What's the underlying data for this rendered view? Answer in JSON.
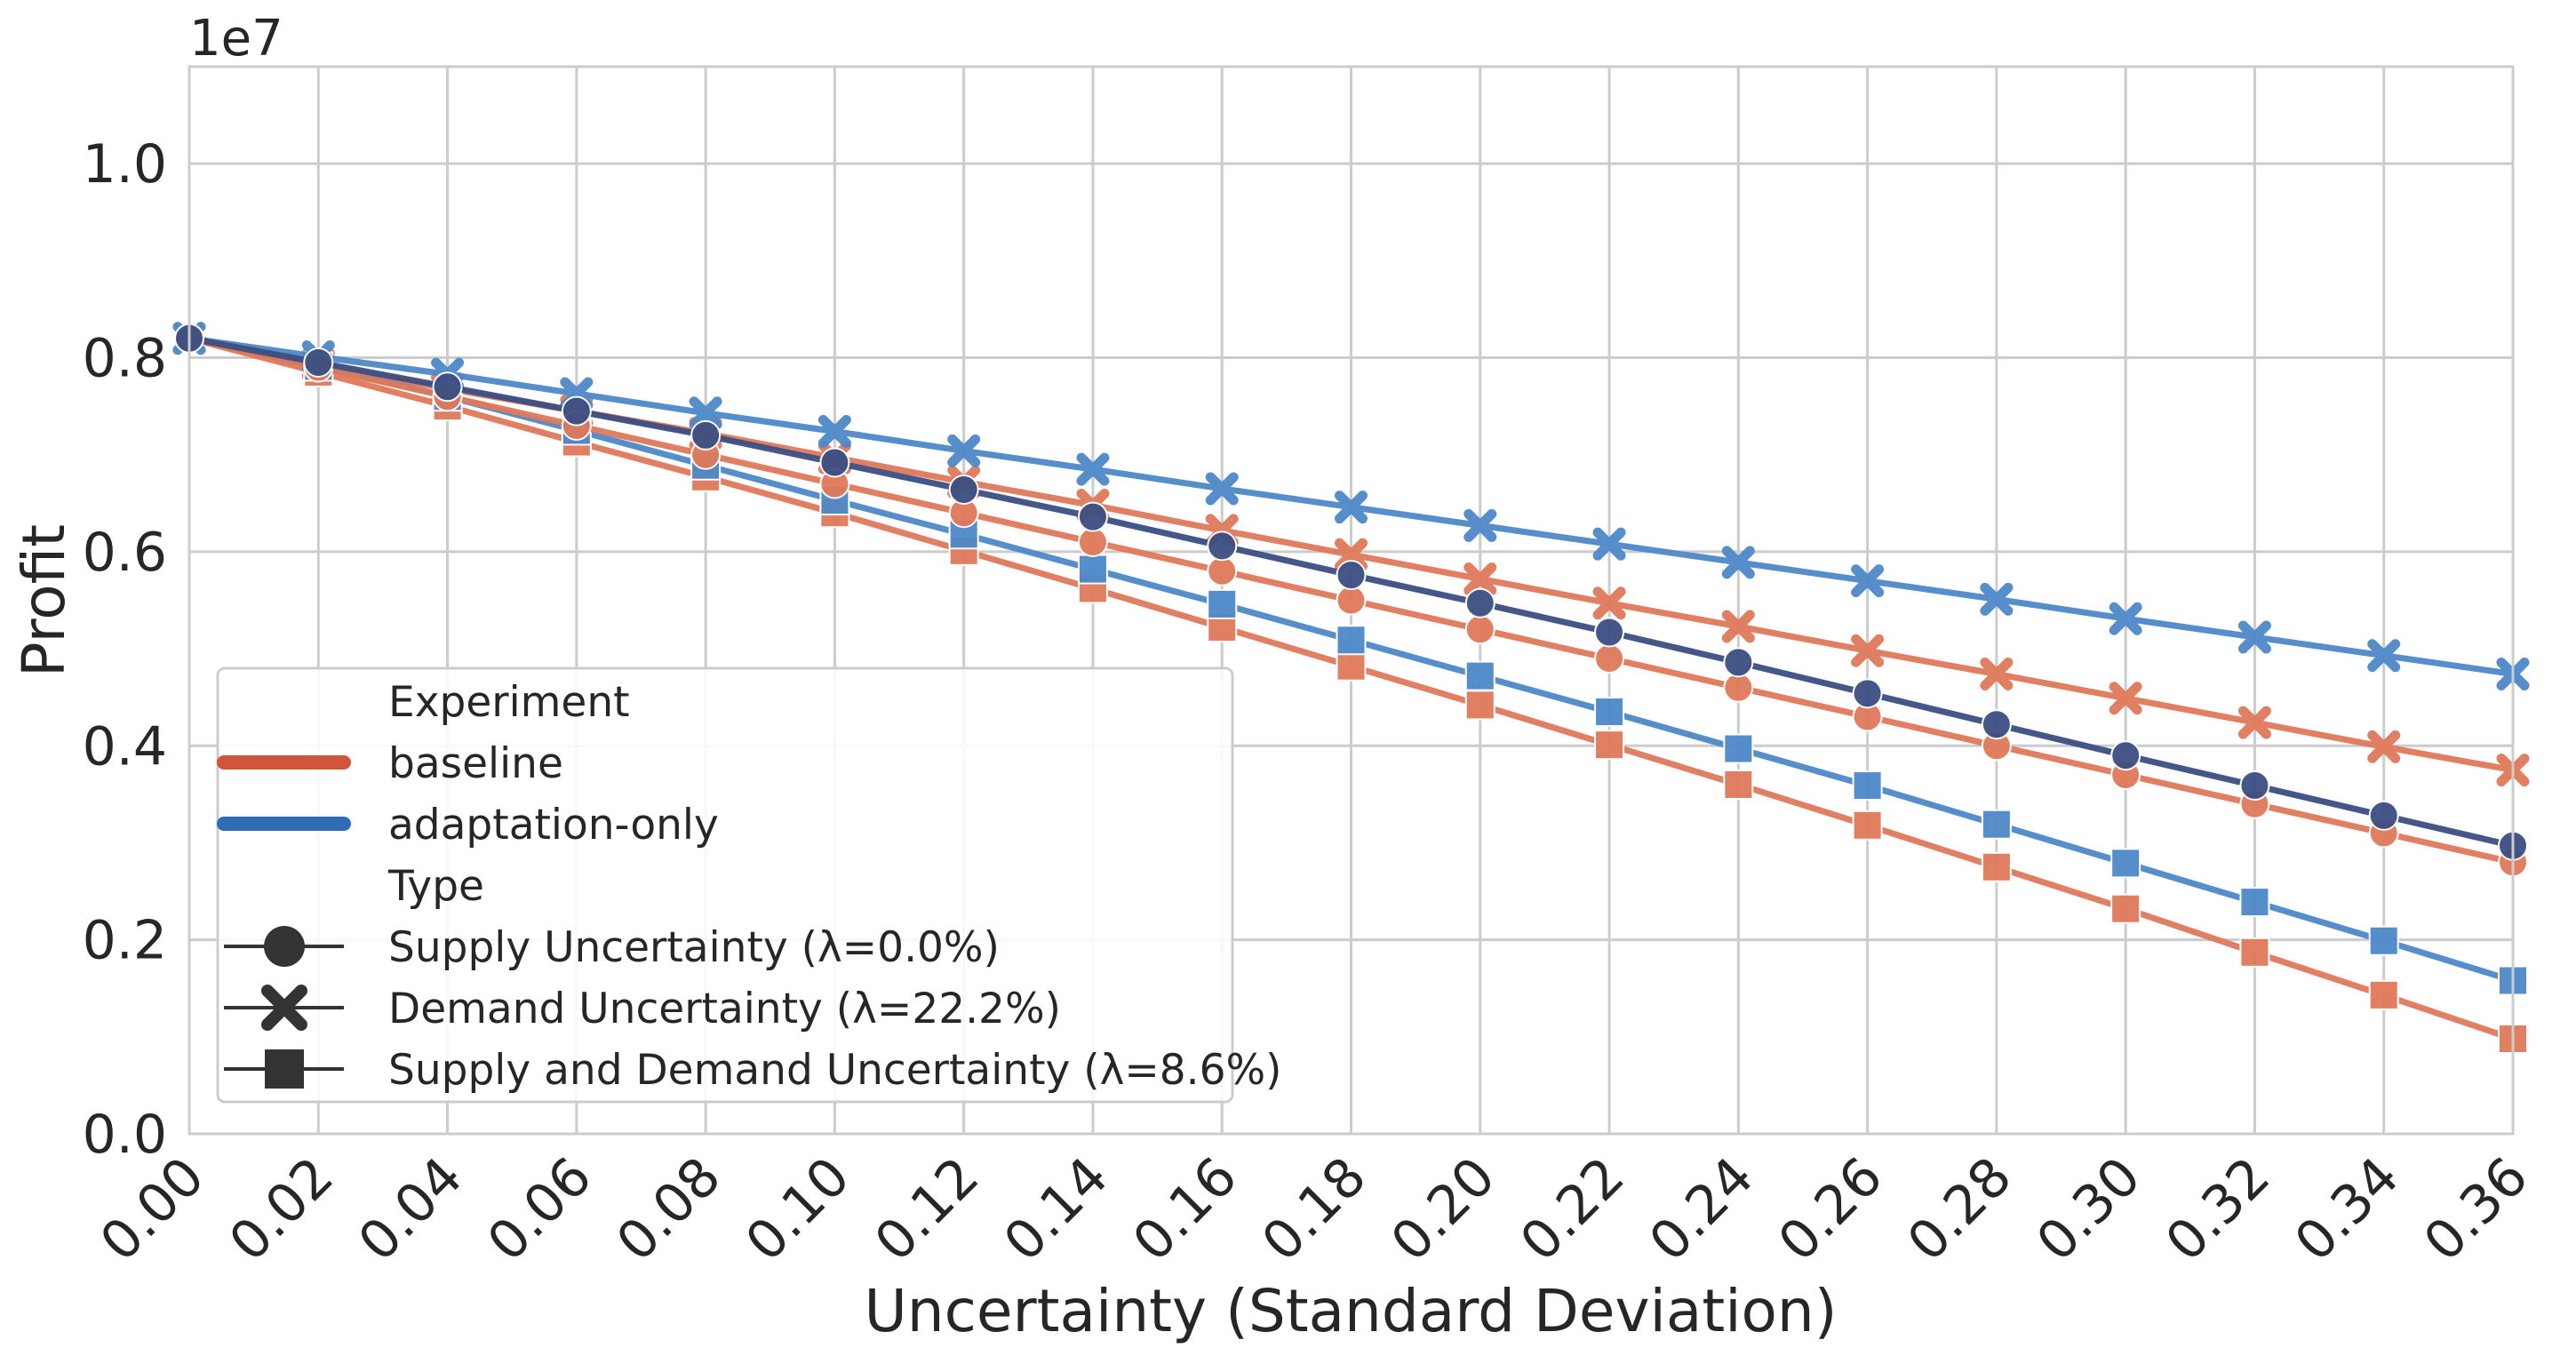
{
  "chart_data": {
    "type": "line",
    "title": "",
    "xlabel": "Uncertainty (Standard Deviation)",
    "ylabel": "Profit",
    "y_scale_label": "1e7",
    "xlim": [
      0.0,
      0.36
    ],
    "ylim": [
      0.0,
      1.1
    ],
    "x_ticks": [
      "0.00",
      "0.02",
      "0.04",
      "0.06",
      "0.08",
      "0.10",
      "0.12",
      "0.14",
      "0.16",
      "0.18",
      "0.20",
      "0.22",
      "0.24",
      "0.26",
      "0.28",
      "0.30",
      "0.32",
      "0.34",
      "0.36"
    ],
    "y_ticks": [
      "0.0",
      "0.2",
      "0.4",
      "0.6",
      "0.8",
      "1.0"
    ],
    "grid": true,
    "x": [
      0.0,
      0.02,
      0.04,
      0.06,
      0.08,
      0.1,
      0.12,
      0.14,
      0.16,
      0.18,
      0.2,
      0.22,
      0.24,
      0.26,
      0.28,
      0.3,
      0.32,
      0.34,
      0.36
    ],
    "colors": {
      "baseline": "#e0795a",
      "adaptation": "#4e88c9",
      "supply": "#3b4f82",
      "legend_baseline": "#d0553a",
      "legend_adaptation": "#2e6db6"
    },
    "series": [
      {
        "name": "baseline — Supply Uncertainty",
        "experiment": "baseline",
        "marker": "circle",
        "values": [
          0.82,
          0.79,
          0.76,
          0.73,
          0.7,
          0.67,
          0.64,
          0.61,
          0.58,
          0.55,
          0.52,
          0.49,
          0.46,
          0.43,
          0.4,
          0.37,
          0.34,
          0.31,
          0.28
        ]
      },
      {
        "name": "adaptation-only — Supply Uncertainty",
        "experiment": "adaptation-only",
        "marker": "circle",
        "values": [
          0.82,
          0.795,
          0.77,
          0.745,
          0.72,
          0.692,
          0.664,
          0.636,
          0.606,
          0.576,
          0.547,
          0.517,
          0.486,
          0.454,
          0.422,
          0.39,
          0.359,
          0.328,
          0.297
        ]
      },
      {
        "name": "baseline — Demand Uncertainty",
        "experiment": "baseline",
        "marker": "x",
        "values": [
          0.82,
          0.793,
          0.768,
          0.745,
          0.722,
          0.697,
          0.672,
          0.648,
          0.622,
          0.597,
          0.572,
          0.547,
          0.523,
          0.498,
          0.474,
          0.449,
          0.424,
          0.399,
          0.375
        ]
      },
      {
        "name": "adaptation-only — Demand Uncertainty",
        "experiment": "adaptation-only",
        "marker": "x",
        "values": [
          0.82,
          0.801,
          0.783,
          0.763,
          0.743,
          0.724,
          0.704,
          0.685,
          0.665,
          0.646,
          0.627,
          0.608,
          0.589,
          0.57,
          0.551,
          0.531,
          0.512,
          0.493,
          0.474
        ]
      },
      {
        "name": "baseline — Supply and Demand Uncertainty",
        "experiment": "baseline",
        "marker": "square",
        "values": [
          0.82,
          0.785,
          0.75,
          0.713,
          0.677,
          0.64,
          0.601,
          0.562,
          0.522,
          0.482,
          0.442,
          0.401,
          0.36,
          0.318,
          0.275,
          0.232,
          0.187,
          0.143,
          0.098
        ]
      },
      {
        "name": "adaptation-only — Supply and Demand Uncertainty",
        "experiment": "adaptation-only",
        "marker": "square",
        "values": [
          0.82,
          0.791,
          0.76,
          0.725,
          0.689,
          0.653,
          0.618,
          0.582,
          0.546,
          0.509,
          0.472,
          0.435,
          0.397,
          0.359,
          0.319,
          0.279,
          0.239,
          0.199,
          0.158
        ]
      }
    ],
    "legend": {
      "placement": "lower-left",
      "experiment_title": "Experiment",
      "experiment_items": [
        "baseline",
        "adaptation-only"
      ],
      "type_title": "Type",
      "type_items": [
        "Supply Uncertainty (λ=0.0%)",
        "Demand Uncertainty (λ=22.2%)",
        "Supply and Demand Uncertainty (λ=8.6%)"
      ]
    }
  }
}
